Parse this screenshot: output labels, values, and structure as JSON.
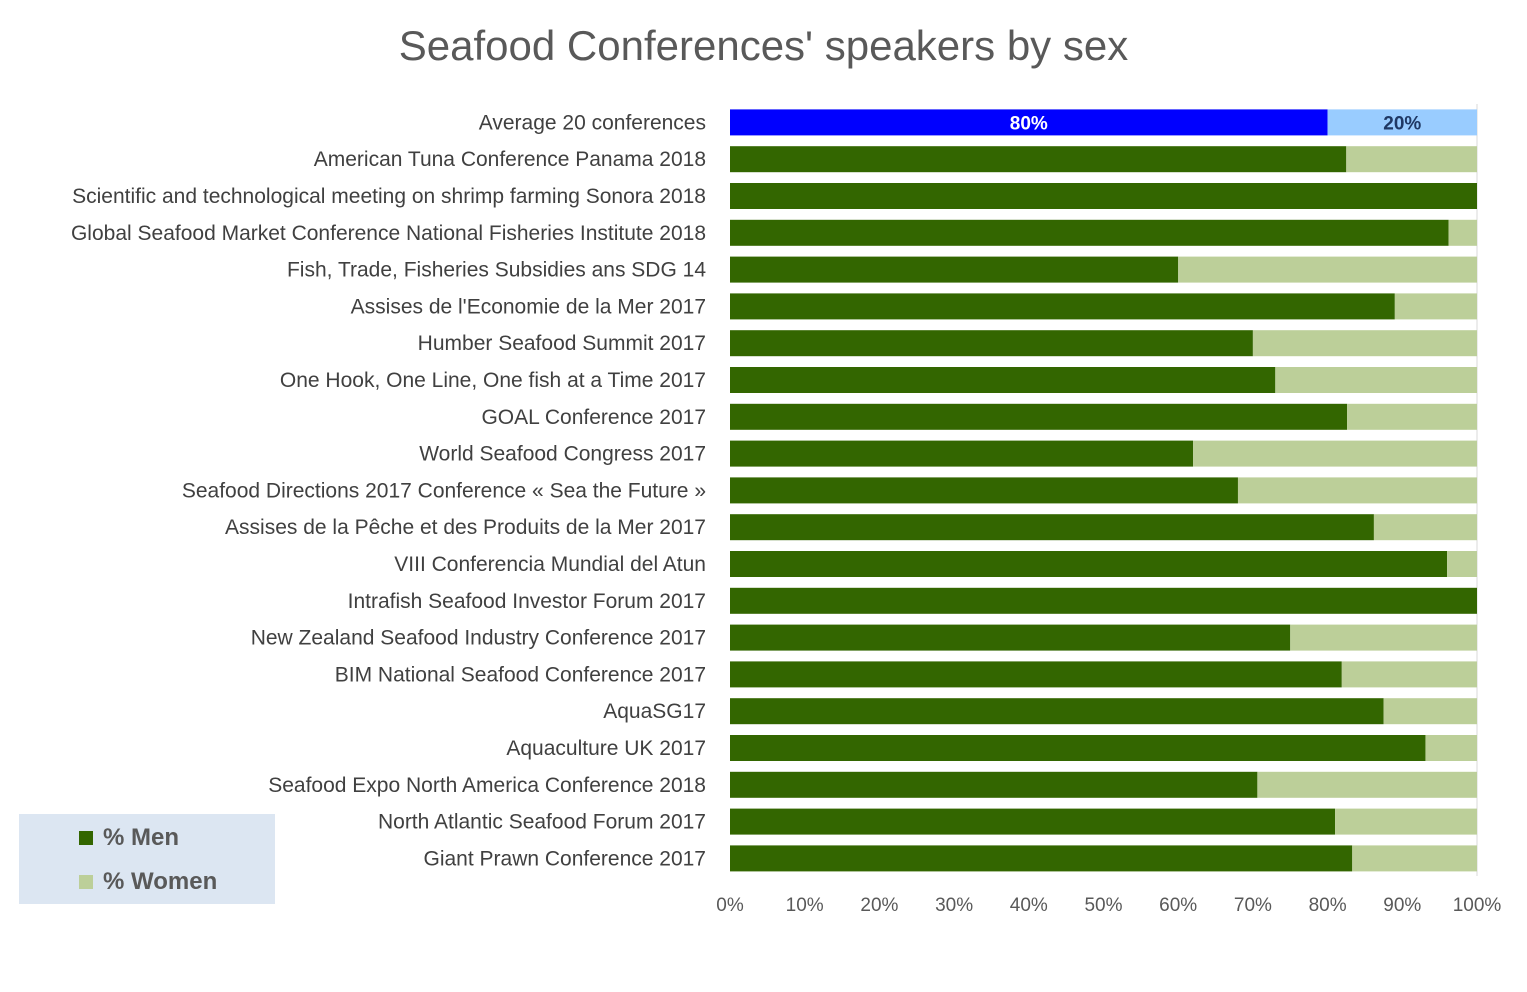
{
  "chart_data": {
    "type": "bar",
    "orientation": "horizontal",
    "stacked": "percent",
    "title": "Seafood Conferences' speakers by sex",
    "categories": [
      "Average 20 conferences",
      "American Tuna Conference Panama 2018",
      "Scientific and technological meeting on shrimp farming Sonora 2018",
      "Global Seafood Market Conference National Fisheries Institute 2018",
      "Fish, Trade, Fisheries Subsidies ans SDG 14",
      "Assises de l'Economie de la Mer 2017",
      "Humber Seafood Summit 2017",
      "One Hook, One Line, One fish at a Time  2017",
      "GOAL Conference 2017",
      "World Seafood Congress 2017",
      "Seafood Directions 2017 Conference « Sea the Future »",
      "Assises de la Pêche et des Produits de la Mer 2017",
      "VIII Conferencia Mundial del Atun",
      "Intrafish Seafood Investor Forum 2017",
      "New Zealand Seafood Industry Conference 2017",
      "BIM National Seafood Conference 2017",
      "AquaSG17",
      "Aquaculture UK 2017",
      "Seafood Expo North America Conference 2018",
      "North Atlantic Seafood Forum 2017",
      "Giant Prawn Conference 2017"
    ],
    "series": [
      {
        "name": "% Men",
        "color": "#336600",
        "highlight_color": "#0000ff",
        "values": [
          80,
          82.5,
          100,
          96.2,
          60,
          89,
          70,
          73,
          82.6,
          62,
          68,
          86.2,
          96,
          100,
          75,
          81.9,
          87.5,
          93.1,
          70.6,
          81,
          83.3
        ]
      },
      {
        "name": "% Women",
        "color": "#bccf99",
        "highlight_color": "#99ccff",
        "values": [
          20,
          17.5,
          0,
          3.8,
          40,
          11,
          30,
          27,
          17.4,
          38,
          32,
          13.8,
          4,
          0,
          25,
          18.1,
          12.5,
          6.9,
          29.4,
          19,
          16.7
        ]
      }
    ],
    "data_labels": [
      "80%",
      "20%"
    ],
    "x_ticks": [
      "0%",
      "10%",
      "20%",
      "30%",
      "40%",
      "50%",
      "60%",
      "70%",
      "80%",
      "90%",
      "100%"
    ],
    "xlim": [
      0,
      100
    ],
    "legend": {
      "placement": "bottom-left",
      "background": "#dce6f2"
    },
    "grid": false
  }
}
